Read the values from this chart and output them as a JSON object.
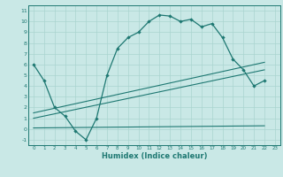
{
  "xlabel": "Humidex (Indice chaleur)",
  "xlim": [
    -0.5,
    23.5
  ],
  "ylim": [
    -1.5,
    11.5
  ],
  "yticks": [
    -1,
    0,
    1,
    2,
    3,
    4,
    5,
    6,
    7,
    8,
    9,
    10,
    11
  ],
  "xticks": [
    0,
    1,
    2,
    3,
    4,
    5,
    6,
    7,
    8,
    9,
    10,
    11,
    12,
    13,
    14,
    15,
    16,
    17,
    18,
    19,
    20,
    21,
    22,
    23
  ],
  "bg_color": "#c9e8e6",
  "grid_color": "#aad4d0",
  "line_color": "#1e7872",
  "curve1_x": [
    0,
    1,
    2,
    3,
    4,
    5,
    6,
    7,
    8,
    9,
    10,
    11,
    12,
    13,
    14,
    15,
    16,
    17,
    18,
    19,
    20,
    21,
    22
  ],
  "curve1_y": [
    6.0,
    4.5,
    2.0,
    1.2,
    -0.2,
    -1.0,
    1.0,
    5.0,
    7.5,
    8.5,
    9.0,
    10.0,
    10.6,
    10.5,
    10.0,
    10.2,
    9.5,
    9.8,
    8.5,
    6.5,
    5.5,
    4.0,
    4.5
  ],
  "line2_x": [
    0,
    22
  ],
  "line2_y": [
    1.5,
    6.2
  ],
  "line3_x": [
    0,
    22
  ],
  "line3_y": [
    1.0,
    5.5
  ],
  "line4_x": [
    0,
    22
  ],
  "line4_y": [
    0.1,
    0.3
  ]
}
